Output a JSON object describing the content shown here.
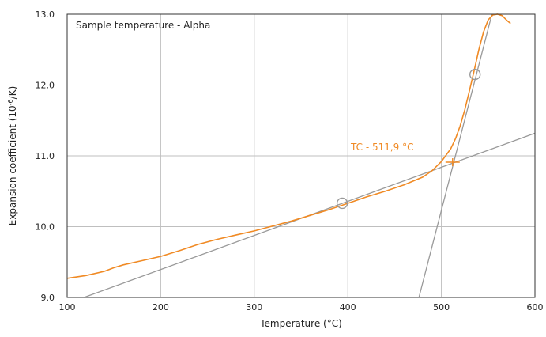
{
  "chart_data": {
    "type": "line",
    "title": "Sample temperature - Alpha",
    "xlabel": "Temperature (°C)",
    "ylabel": "Expansion coefficient (10",
    "ylabel_sup": "-6",
    "ylabel_tail": "/K)",
    "xlim": [
      100,
      600
    ],
    "ylim": [
      9.0,
      13.0
    ],
    "x_ticks": [
      100,
      200,
      300,
      400,
      500,
      600
    ],
    "y_ticks": [
      9.0,
      10.0,
      11.0,
      12.0,
      13.0
    ],
    "y_tick_labels": [
      "9.0",
      "10.0",
      "11.0",
      "12.0",
      "13.0"
    ],
    "grid": true,
    "colors": {
      "curve": "#f08a24",
      "tangent": "#999999",
      "grid": "#bfbfbf",
      "axes": "#333333"
    },
    "series": [
      {
        "name": "",
        "x": [
          100,
          120,
          140,
          150,
          160,
          180,
          200,
          220,
          240,
          260,
          280,
          300,
          320,
          340,
          360,
          380,
          400,
          420,
          440,
          460,
          480,
          490,
          500,
          510,
          515,
          520,
          525,
          530,
          535,
          540,
          545,
          550,
          555,
          560,
          565,
          568,
          571,
          574
        ],
        "y": [
          9.27,
          9.31,
          9.37,
          9.42,
          9.46,
          9.52,
          9.58,
          9.66,
          9.75,
          9.82,
          9.88,
          9.94,
          10.01,
          10.08,
          10.16,
          10.24,
          10.33,
          10.42,
          10.5,
          10.59,
          10.7,
          10.79,
          10.92,
          11.1,
          11.24,
          11.42,
          11.65,
          11.92,
          12.2,
          12.5,
          12.75,
          12.92,
          12.99,
          13.0,
          12.98,
          12.94,
          12.9,
          12.87
        ]
      }
    ],
    "tangent_lines": [
      {
        "x": [
          118,
          600
        ],
        "y": [
          9.0,
          11.32
        ]
      },
      {
        "x": [
          476,
          554
        ],
        "y": [
          9.0,
          13.0
        ]
      }
    ],
    "tangent_points": [
      {
        "x": 394,
        "y": 10.33
      },
      {
        "x": 536,
        "y": 12.15
      }
    ],
    "onset": {
      "x": 512,
      "y": 10.91,
      "label": "TC - 511,9 °C"
    }
  }
}
